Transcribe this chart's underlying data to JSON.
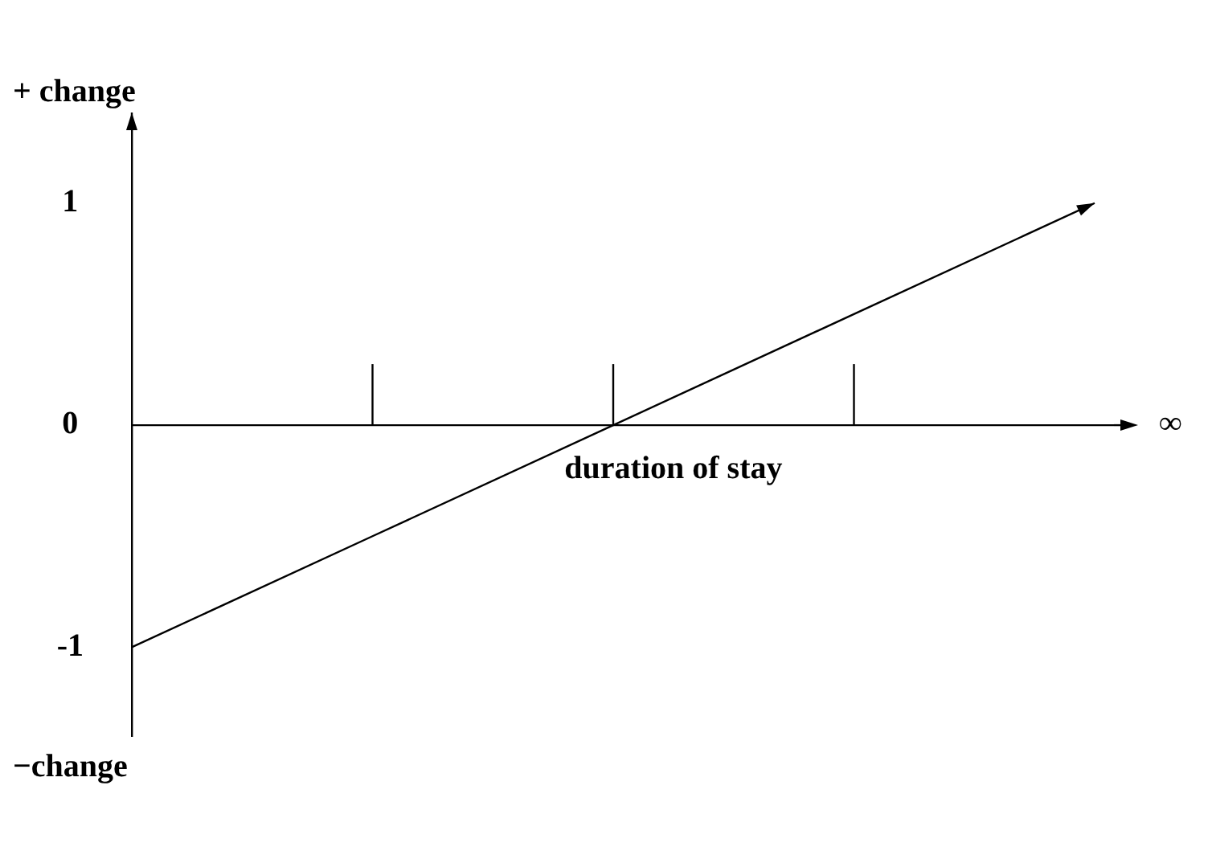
{
  "chart_data": {
    "type": "line",
    "ylabel": "+ change",
    "xlabel": "duration of stay",
    "annotations": [
      "−change",
      "∞"
    ],
    "categories": [
      null,
      null,
      null,
      null,
      null
    ],
    "values": [
      -1,
      -0.5,
      0,
      0.5,
      1
    ],
    "color": "#000000",
    "ylim": [
      -1.4,
      1.35
    ],
    "yticks": [
      -1,
      0,
      1
    ],
    "ref_lines": [
      {
        "axis": "y",
        "value": 0,
        "color": "#000000"
      }
    ],
    "grid": false,
    "legend": false,
    "marker": "none",
    "line_style": "solid"
  }
}
